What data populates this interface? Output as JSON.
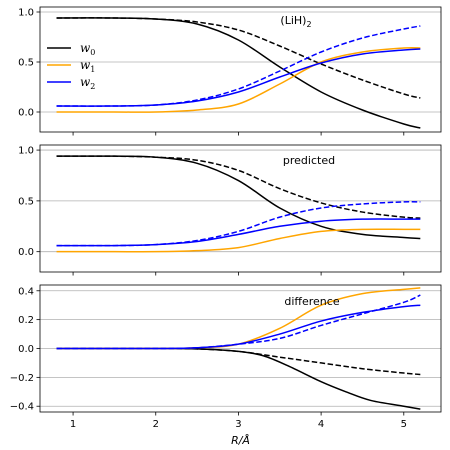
{
  "chart_data": [
    {
      "type": "line",
      "annotation": "(LiH)",
      "annotation_sub": "2",
      "ylim": [
        -0.2,
        1.05
      ],
      "yticks": [
        0.0,
        0.5,
        1.0
      ],
      "ytick_labels": [
        "0.0",
        "0.5",
        "1.0"
      ],
      "grid": true,
      "legend": {
        "placement": "left",
        "entries": [
          {
            "symbol": "w",
            "sub": "0",
            "color": "#000000"
          },
          {
            "symbol": "w",
            "sub": "1",
            "color": "#ffa500"
          },
          {
            "symbol": "w",
            "sub": "2",
            "color": "#0000ff"
          }
        ]
      },
      "series": [
        {
          "color": "#000000",
          "dash": false,
          "points": [
            [
              0.8,
              0.94
            ],
            [
              1.5,
              0.94
            ],
            [
              2.0,
              0.93
            ],
            [
              2.5,
              0.88
            ],
            [
              3.0,
              0.72
            ],
            [
              3.5,
              0.45
            ],
            [
              4.0,
              0.2
            ],
            [
              4.5,
              0.02
            ],
            [
              5.0,
              -0.12
            ],
            [
              5.2,
              -0.16
            ]
          ]
        },
        {
          "color": "#000000",
          "dash": true,
          "points": [
            [
              0.8,
              0.94
            ],
            [
              1.5,
              0.94
            ],
            [
              2.0,
              0.93
            ],
            [
              2.5,
              0.9
            ],
            [
              3.0,
              0.82
            ],
            [
              3.5,
              0.66
            ],
            [
              4.0,
              0.48
            ],
            [
              4.5,
              0.32
            ],
            [
              5.0,
              0.18
            ],
            [
              5.2,
              0.14
            ]
          ]
        },
        {
          "color": "#ffa500",
          "dash": false,
          "points": [
            [
              0.8,
              0.0
            ],
            [
              1.5,
              0.0
            ],
            [
              2.0,
              0.0
            ],
            [
              2.5,
              0.02
            ],
            [
              3.0,
              0.08
            ],
            [
              3.5,
              0.28
            ],
            [
              4.0,
              0.5
            ],
            [
              4.5,
              0.6
            ],
            [
              5.0,
              0.64
            ],
            [
              5.2,
              0.64
            ]
          ]
        },
        {
          "color": "#0000ff",
          "dash": false,
          "points": [
            [
              0.8,
              0.06
            ],
            [
              1.5,
              0.06
            ],
            [
              2.0,
              0.07
            ],
            [
              2.5,
              0.11
            ],
            [
              3.0,
              0.2
            ],
            [
              3.5,
              0.35
            ],
            [
              4.0,
              0.49
            ],
            [
              4.5,
              0.58
            ],
            [
              5.0,
              0.62
            ],
            [
              5.2,
              0.63
            ]
          ]
        },
        {
          "color": "#0000ff",
          "dash": true,
          "points": [
            [
              0.8,
              0.06
            ],
            [
              1.5,
              0.06
            ],
            [
              2.0,
              0.07
            ],
            [
              2.5,
              0.12
            ],
            [
              3.0,
              0.23
            ],
            [
              3.5,
              0.41
            ],
            [
              4.0,
              0.6
            ],
            [
              4.5,
              0.74
            ],
            [
              5.0,
              0.83
            ],
            [
              5.2,
              0.86
            ]
          ]
        }
      ]
    },
    {
      "type": "line",
      "annotation": "predicted",
      "ylim": [
        -0.2,
        1.05
      ],
      "yticks": [
        0.0,
        0.5,
        1.0
      ],
      "ytick_labels": [
        "0.0",
        "0.5",
        "1.0"
      ],
      "grid": true,
      "series": [
        {
          "color": "#000000",
          "dash": false,
          "points": [
            [
              0.8,
              0.94
            ],
            [
              1.5,
              0.94
            ],
            [
              2.0,
              0.93
            ],
            [
              2.5,
              0.87
            ],
            [
              3.0,
              0.7
            ],
            [
              3.5,
              0.43
            ],
            [
              4.0,
              0.25
            ],
            [
              4.5,
              0.17
            ],
            [
              5.0,
              0.14
            ],
            [
              5.2,
              0.13
            ]
          ]
        },
        {
          "color": "#000000",
          "dash": true,
          "points": [
            [
              0.8,
              0.94
            ],
            [
              1.5,
              0.94
            ],
            [
              2.0,
              0.93
            ],
            [
              2.5,
              0.9
            ],
            [
              3.0,
              0.8
            ],
            [
              3.5,
              0.62
            ],
            [
              4.0,
              0.48
            ],
            [
              4.5,
              0.39
            ],
            [
              5.0,
              0.34
            ],
            [
              5.2,
              0.33
            ]
          ]
        },
        {
          "color": "#ffa500",
          "dash": false,
          "points": [
            [
              0.8,
              0.0
            ],
            [
              1.5,
              0.0
            ],
            [
              2.0,
              0.0
            ],
            [
              2.5,
              0.01
            ],
            [
              3.0,
              0.04
            ],
            [
              3.5,
              0.13
            ],
            [
              4.0,
              0.2
            ],
            [
              4.5,
              0.22
            ],
            [
              5.0,
              0.22
            ],
            [
              5.2,
              0.22
            ]
          ]
        },
        {
          "color": "#0000ff",
          "dash": false,
          "points": [
            [
              0.8,
              0.06
            ],
            [
              1.5,
              0.06
            ],
            [
              2.0,
              0.07
            ],
            [
              2.5,
              0.1
            ],
            [
              3.0,
              0.17
            ],
            [
              3.5,
              0.25
            ],
            [
              4.0,
              0.3
            ],
            [
              4.5,
              0.32
            ],
            [
              5.0,
              0.32
            ],
            [
              5.2,
              0.32
            ]
          ]
        },
        {
          "color": "#0000ff",
          "dash": true,
          "points": [
            [
              0.8,
              0.06
            ],
            [
              1.5,
              0.06
            ],
            [
              2.0,
              0.07
            ],
            [
              2.5,
              0.11
            ],
            [
              3.0,
              0.2
            ],
            [
              3.5,
              0.34
            ],
            [
              4.0,
              0.43
            ],
            [
              4.5,
              0.47
            ],
            [
              5.0,
              0.49
            ],
            [
              5.2,
              0.49
            ]
          ]
        }
      ]
    },
    {
      "type": "line",
      "annotation": "difference",
      "ylim": [
        -0.44,
        0.44
      ],
      "yticks": [
        -0.4,
        -0.2,
        0.0,
        0.2,
        0.4
      ],
      "ytick_labels": [
        "−0.4",
        "−0.2",
        "0.0",
        "0.2",
        "0.4"
      ],
      "grid": true,
      "xticks": [
        1,
        2,
        3,
        4,
        5
      ],
      "xtick_labels": [
        "1",
        "2",
        "3",
        "4",
        "5"
      ],
      "xlabel": "R/Å",
      "series": [
        {
          "color": "#000000",
          "dash": false,
          "points": [
            [
              0.8,
              0.0
            ],
            [
              2.0,
              0.0
            ],
            [
              2.5,
              -0.003
            ],
            [
              3.0,
              -0.02
            ],
            [
              3.3,
              -0.05
            ],
            [
              3.6,
              -0.12
            ],
            [
              4.0,
              -0.23
            ],
            [
              4.3,
              -0.3
            ],
            [
              4.6,
              -0.36
            ],
            [
              5.0,
              -0.4
            ],
            [
              5.2,
              -0.42
            ]
          ]
        },
        {
          "color": "#000000",
          "dash": true,
          "points": [
            [
              0.8,
              0.0
            ],
            [
              2.0,
              0.0
            ],
            [
              2.5,
              -0.003
            ],
            [
              3.0,
              -0.02
            ],
            [
              3.5,
              -0.06
            ],
            [
              4.0,
              -0.1
            ],
            [
              4.5,
              -0.14
            ],
            [
              5.0,
              -0.17
            ],
            [
              5.2,
              -0.18
            ]
          ]
        },
        {
          "color": "#ffa500",
          "dash": false,
          "points": [
            [
              0.8,
              0.0
            ],
            [
              2.0,
              0.0
            ],
            [
              2.5,
              0.005
            ],
            [
              3.0,
              0.03
            ],
            [
              3.5,
              0.14
            ],
            [
              4.0,
              0.3
            ],
            [
              4.5,
              0.38
            ],
            [
              5.0,
              0.41
            ],
            [
              5.2,
              0.42
            ]
          ]
        },
        {
          "color": "#0000ff",
          "dash": false,
          "points": [
            [
              0.8,
              0.0
            ],
            [
              2.0,
              0.0
            ],
            [
              2.5,
              0.005
            ],
            [
              3.0,
              0.03
            ],
            [
              3.5,
              0.1
            ],
            [
              4.0,
              0.19
            ],
            [
              4.5,
              0.25
            ],
            [
              5.0,
              0.29
            ],
            [
              5.2,
              0.3
            ]
          ]
        },
        {
          "color": "#0000ff",
          "dash": true,
          "points": [
            [
              0.8,
              0.0
            ],
            [
              2.0,
              0.0
            ],
            [
              2.5,
              0.005
            ],
            [
              3.0,
              0.03
            ],
            [
              3.5,
              0.07
            ],
            [
              4.0,
              0.16
            ],
            [
              4.5,
              0.24
            ],
            [
              5.0,
              0.32
            ],
            [
              5.2,
              0.37
            ]
          ]
        }
      ]
    }
  ]
}
